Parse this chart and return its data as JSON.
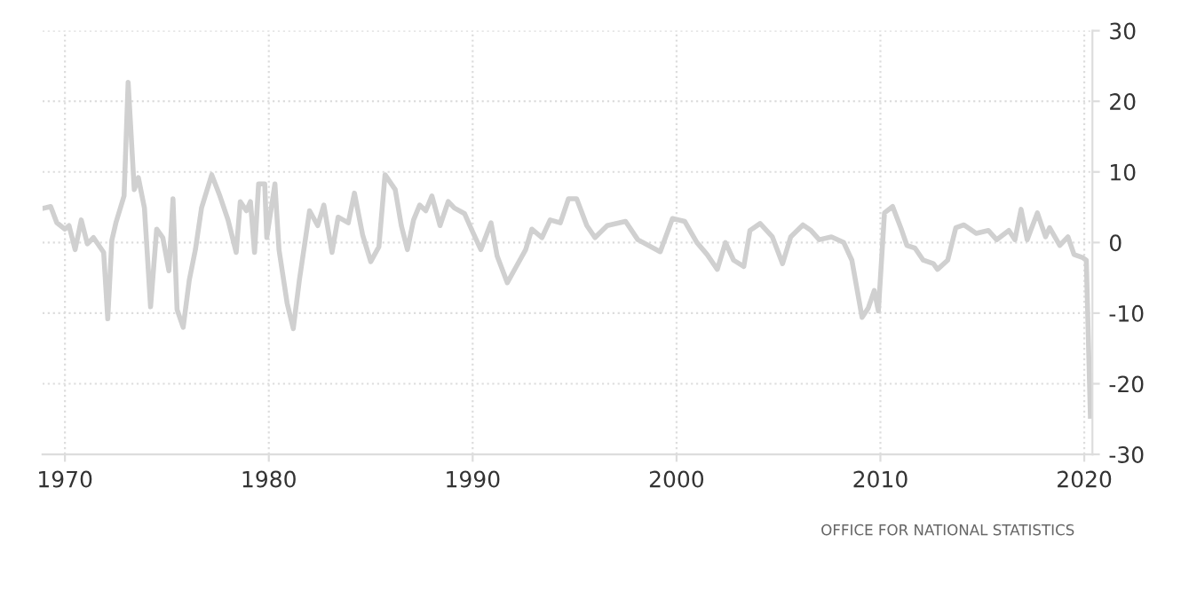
{
  "chart_data": {
    "type": "line",
    "xlim": [
      1968.9,
      2020.4
    ],
    "xticks": [
      1970,
      1980,
      1990,
      2000,
      2010,
      2020
    ],
    "ylim": [
      -30,
      30
    ],
    "yticks": [
      -30,
      -20,
      -10,
      0,
      10,
      20,
      30
    ],
    "grid": true,
    "marker": "none",
    "line_style": "solid",
    "annotations": [
      "OFFICE FOR NATIONAL STATISTICS"
    ],
    "series": [
      {
        "color": "#d0d0d0",
        "x": [
          1969.0,
          1969.3,
          1969.6,
          1970.0,
          1970.2,
          1970.5,
          1970.8,
          1971.1,
          1971.4,
          1971.9,
          1972.1,
          1972.3,
          1972.5,
          1972.9,
          1973.1,
          1973.4,
          1973.6,
          1973.9,
          1974.2,
          1974.5,
          1974.8,
          1975.1,
          1975.3,
          1975.5,
          1975.8,
          1976.1,
          1976.4,
          1976.7,
          1977.2,
          1977.6,
          1978.0,
          1978.4,
          1978.6,
          1978.9,
          1979.1,
          1979.3,
          1979.5,
          1979.8,
          1979.9,
          1980.3,
          1980.5,
          1980.9,
          1981.2,
          1981.5,
          1982.0,
          1982.4,
          1982.7,
          1983.1,
          1983.4,
          1983.9,
          1984.2,
          1984.6,
          1985.0,
          1985.4,
          1985.7,
          1986.2,
          1986.5,
          1986.8,
          1987.1,
          1987.4,
          1987.7,
          1988.0,
          1988.4,
          1988.8,
          1989.1,
          1989.6,
          1990.0,
          1990.4,
          1990.9,
          1991.2,
          1991.7,
          1992.1,
          1992.6,
          1992.9,
          1993.4,
          1993.8,
          1994.3,
          1994.7,
          1995.1,
          1995.6,
          1996.0,
          1996.6,
          1997.5,
          1998.1,
          1999.2,
          1999.8,
          2000.4,
          2001.0,
          2001.5,
          2002.0,
          2002.4,
          2002.8,
          2003.3,
          2003.6,
          2004.1,
          2004.7,
          2005.2,
          2005.6,
          2006.2,
          2006.6,
          2007.0,
          2007.6,
          2008.2,
          2008.6,
          2009.1,
          2009.4,
          2009.7,
          2009.9,
          2010.2,
          2010.6,
          2011.0,
          2011.3,
          2011.7,
          2012.1,
          2012.6,
          2012.8,
          2013.3,
          2013.7,
          2014.1,
          2014.7,
          2015.3,
          2015.7,
          2016.3,
          2016.6,
          2016.9,
          2017.2,
          2017.7,
          2018.1,
          2018.3,
          2018.8,
          2019.2,
          2019.5,
          2019.9,
          2020.1,
          2020.3
        ],
        "values": [
          4.9,
          5.1,
          2.8,
          1.9,
          2.4,
          -1.0,
          3.2,
          -0.2,
          0.7,
          -1.4,
          -10.8,
          0.3,
          2.8,
          6.6,
          22.7,
          7.5,
          9.2,
          4.9,
          -9.1,
          1.9,
          0.7,
          -4.0,
          6.2,
          -9.5,
          -12.0,
          -5.3,
          -1.0,
          4.9,
          9.6,
          6.6,
          3.2,
          -1.4,
          5.8,
          4.5,
          5.8,
          -1.4,
          8.3,
          8.3,
          0.7,
          8.3,
          -1.0,
          -8.6,
          -12.2,
          -5.3,
          4.5,
          2.4,
          5.3,
          -1.4,
          3.6,
          2.8,
          7.0,
          1.1,
          -2.7,
          -0.6,
          9.6,
          7.5,
          2.4,
          -1.0,
          3.2,
          5.3,
          4.5,
          6.6,
          2.4,
          5.8,
          4.9,
          4.1,
          1.5,
          -1.0,
          2.8,
          -1.9,
          -5.7,
          -3.6,
          -1.0,
          1.9,
          0.7,
          3.2,
          2.8,
          6.2,
          6.2,
          2.4,
          0.7,
          2.4,
          3.0,
          0.4,
          -1.3,
          3.4,
          3.0,
          0,
          -1.7,
          -3.8,
          0,
          -2.5,
          -3.4,
          1.7,
          2.7,
          0.8,
          -3.0,
          0.8,
          2.5,
          1.7,
          0.4,
          0.8,
          0,
          -2.5,
          -10.6,
          -9.3,
          -6.8,
          -9.7,
          4.2,
          5.1,
          2.1,
          -0.4,
          -0.8,
          -2.5,
          -3.0,
          -3.8,
          -2.5,
          2.1,
          2.5,
          1.3,
          1.7,
          0.4,
          1.7,
          0.4,
          4.7,
          0.4,
          4.2,
          0.8,
          2.1,
          -0.4,
          0.8,
          -1.7,
          -2.1,
          -2.5,
          -24.6
        ]
      }
    ]
  }
}
